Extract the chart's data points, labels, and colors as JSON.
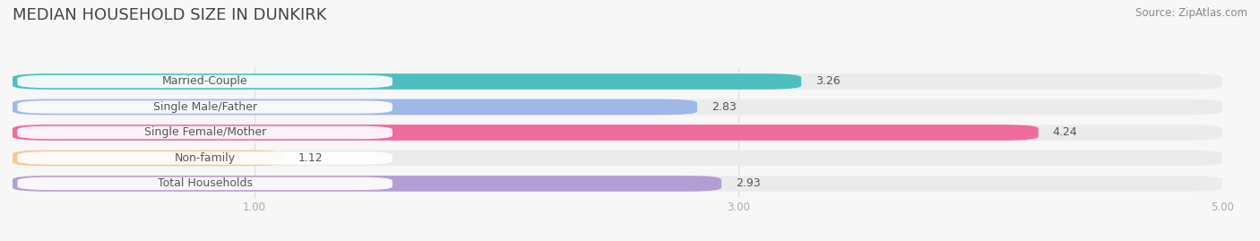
{
  "title": "MEDIAN HOUSEHOLD SIZE IN DUNKIRK",
  "source": "Source: ZipAtlas.com",
  "categories": [
    "Married-Couple",
    "Single Male/Father",
    "Single Female/Mother",
    "Non-family",
    "Total Households"
  ],
  "values": [
    3.26,
    2.83,
    4.24,
    1.12,
    2.93
  ],
  "bar_colors": [
    "#4dbfbf",
    "#9eb8e8",
    "#f06b9e",
    "#f5c897",
    "#b39fd4"
  ],
  "bar_bg_color": "#ebebeb",
  "xlim": [
    0,
    5.0
  ],
  "xticks": [
    1.0,
    3.0,
    5.0
  ],
  "xtick_labels": [
    "1.00",
    "3.00",
    "5.00"
  ],
  "bar_height": 0.62,
  "label_fontsize": 9.0,
  "value_fontsize": 9.0,
  "title_fontsize": 13,
  "source_fontsize": 8.5,
  "background_color": "#f7f7f7",
  "label_pill_color": "#ffffff",
  "label_text_color": "#555555",
  "value_text_color": "#555555",
  "grid_color": "#dddddd",
  "tick_color": "#aaaaaa"
}
